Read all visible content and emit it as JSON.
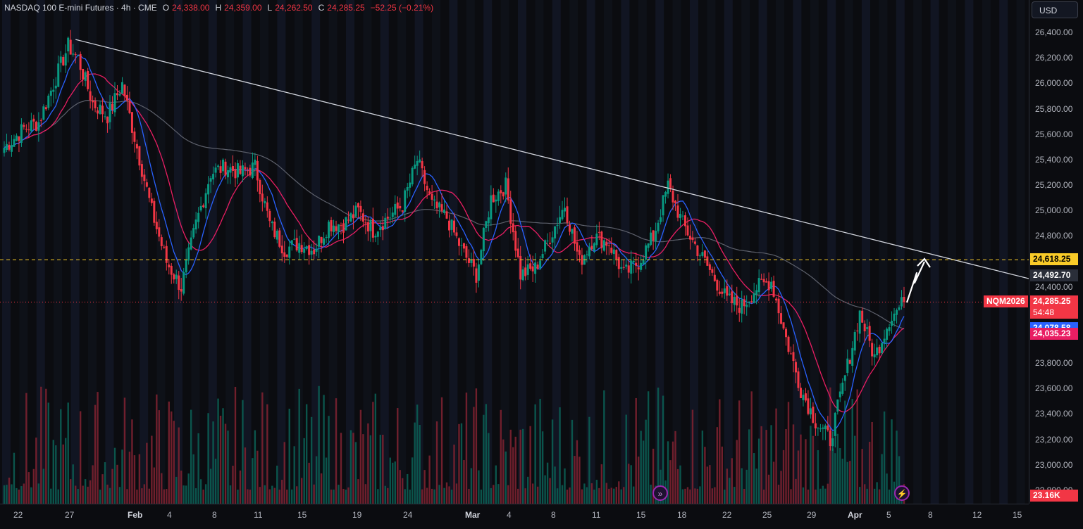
{
  "header": {
    "symbol_title": "NASDAQ 100 E-mini Futures · 4h · CME",
    "open_label": "O",
    "open": "24,338.00",
    "high_label": "H",
    "high": "24,359.00",
    "low_label": "L",
    "low": "24,262.50",
    "close_label": "C",
    "close": "24,285.25",
    "change": "−52.25 (−0.21%)"
  },
  "currency_button": "USD",
  "price_axis": {
    "ticks": [
      "26,400.00",
      "26,200.00",
      "26,000.00",
      "25,800.00",
      "25,600.00",
      "25,400.00",
      "25,200.00",
      "25,000.00",
      "24,800.00",
      "24,400.00",
      "23,800.00",
      "23,600.00",
      "23,400.00",
      "23,200.00",
      "23,000.00",
      "22,800.00"
    ],
    "tags": {
      "level_line": "24,618.25",
      "ma_long": "24,492.70",
      "ticker": "NQM2026",
      "last_price": "24,285.25",
      "countdown": "54:48",
      "ma_fast": "24,078.58",
      "ma_slow": "24,035.23",
      "volume": "23.16K"
    }
  },
  "time_axis": {
    "labels": [
      "22",
      "27",
      "Feb",
      "4",
      "8",
      "11",
      "15",
      "19",
      "24",
      "Mar",
      "4",
      "8",
      "11",
      "15",
      "18",
      "22",
      "25",
      "29",
      "Apr",
      "5",
      "8",
      "12",
      "15"
    ]
  },
  "colors": {
    "up": "#089981",
    "down": "#f23645",
    "ma_fast": "#2962ff",
    "ma_slow": "#e91e63",
    "ma_long": "#5d606b",
    "trendline": "#d1d4dc",
    "level": "#f9cb28"
  },
  "chart_data": {
    "type": "candlestick",
    "title": "NASDAQ 100 E-mini Futures · 4h · CME",
    "ylim": [
      22700,
      26550
    ],
    "x_labels": [
      "22",
      "27",
      "Feb",
      "4",
      "8",
      "11",
      "15",
      "19",
      "24",
      "Mar",
      "4",
      "8",
      "11",
      "15",
      "18",
      "22",
      "25",
      "29",
      "Apr",
      "5",
      "8",
      "12",
      "15"
    ],
    "waypoints": [
      [
        0,
        25500
      ],
      [
        8,
        25650
      ],
      [
        14,
        25700
      ],
      [
        20,
        26000
      ],
      [
        26,
        26300
      ],
      [
        30,
        26200
      ],
      [
        36,
        25850
      ],
      [
        42,
        25750
      ],
      [
        48,
        26000
      ],
      [
        54,
        25500
      ],
      [
        60,
        25000
      ],
      [
        66,
        24600
      ],
      [
        72,
        24400
      ],
      [
        78,
        24900
      ],
      [
        84,
        25300
      ],
      [
        90,
        25350
      ],
      [
        96,
        25300
      ],
      [
        102,
        25350
      ],
      [
        108,
        24900
      ],
      [
        114,
        24700
      ],
      [
        120,
        24750
      ],
      [
        126,
        24700
      ],
      [
        132,
        24900
      ],
      [
        138,
        24900
      ],
      [
        144,
        25000
      ],
      [
        150,
        24850
      ],
      [
        156,
        24950
      ],
      [
        162,
        25050
      ],
      [
        168,
        25400
      ],
      [
        174,
        25050
      ],
      [
        180,
        24950
      ],
      [
        186,
        24700
      ],
      [
        192,
        24500
      ],
      [
        198,
        25100
      ],
      [
        204,
        25200
      ],
      [
        210,
        24500
      ],
      [
        216,
        24550
      ],
      [
        222,
        24800
      ],
      [
        228,
        25050
      ],
      [
        234,
        24600
      ],
      [
        240,
        24800
      ],
      [
        246,
        24750
      ],
      [
        252,
        24500
      ],
      [
        258,
        24600
      ],
      [
        264,
        24800
      ],
      [
        270,
        25200
      ],
      [
        276,
        24900
      ],
      [
        282,
        24700
      ],
      [
        288,
        24500
      ],
      [
        294,
        24300
      ],
      [
        300,
        24250
      ],
      [
        306,
        24400
      ],
      [
        312,
        24450
      ],
      [
        318,
        24000
      ],
      [
        324,
        23600
      ],
      [
        330,
        23350
      ],
      [
        336,
        23200
      ],
      [
        342,
        23700
      ],
      [
        348,
        24200
      ],
      [
        354,
        23850
      ],
      [
        360,
        24150
      ],
      [
        366,
        24285
      ]
    ],
    "last_close": 24285.25,
    "trendline": {
      "start": [
        29,
        26350
      ],
      "end_y_at_axis": 24470
    },
    "horizontal_level": 24618.25,
    "ma_fast_last": 24078.58,
    "ma_slow_last": 24035.23,
    "ma_long_last": 24492.7,
    "projection_arrow": [
      [
        1287,
        430
      ],
      [
        1301,
        388
      ],
      [
        1298,
        402
      ],
      [
        1312,
        372
      ]
    ]
  }
}
